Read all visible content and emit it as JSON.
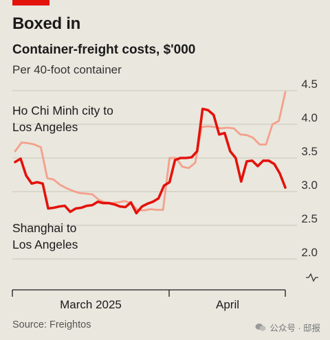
{
  "header": {
    "title": "Boxed in",
    "subtitle": "Container-freight costs, $'000",
    "note": "Per 40-foot container"
  },
  "footer": {
    "source": "Source: Freightos",
    "watermark": "公众号 · 邸报"
  },
  "colors": {
    "background": "#e9e7de",
    "accent": "#e3120b",
    "hcmc_line": "#f4a08c",
    "shanghai_line": "#e3120b",
    "axis": "#1a1a1a"
  },
  "chart_data": {
    "type": "line",
    "title": "Container-freight costs, $'000",
    "subtitle": "Per 40-foot container",
    "ylim": [
      2.0,
      4.5
    ],
    "y_ticks": [
      2.0,
      2.5,
      3.0,
      3.5,
      4.0,
      4.5
    ],
    "y_tick_labels": [
      "2.0",
      "2.5",
      "3.0",
      "3.5",
      "4.0",
      "4.5"
    ],
    "x_labels": [
      "March 2025",
      "April"
    ],
    "grid": "horizontal",
    "axis_break": true,
    "series": [
      {
        "name": "Ho Chi Minh city to Los Angeles",
        "color": "#f4a08c",
        "values": [
          3.6,
          3.73,
          3.72,
          3.7,
          3.66,
          3.2,
          3.18,
          3.1,
          3.05,
          3.01,
          2.98,
          2.97,
          2.96,
          2.88,
          2.84,
          2.83,
          2.84,
          2.86,
          2.83,
          2.73,
          2.72,
          2.74,
          2.73,
          2.73,
          3.5,
          3.5,
          3.37,
          3.35,
          3.43,
          3.96,
          3.97,
          3.96,
          3.94,
          3.95,
          3.94,
          3.85,
          3.84,
          3.8,
          3.7,
          3.7,
          4.0,
          4.05,
          4.48
        ]
      },
      {
        "name": "Shanghai to Los Angeles",
        "color": "#e3120b",
        "values": [
          3.44,
          3.49,
          3.24,
          3.12,
          3.14,
          3.12,
          2.75,
          2.76,
          2.78,
          2.79,
          2.7,
          2.75,
          2.76,
          2.79,
          2.8,
          2.85,
          2.83,
          2.83,
          2.81,
          2.78,
          2.77,
          2.84,
          2.68,
          2.78,
          2.82,
          2.85,
          2.9,
          3.09,
          3.14,
          3.47,
          3.5,
          3.5,
          3.51,
          3.6,
          4.23,
          4.21,
          4.14,
          3.85,
          3.87,
          3.6,
          3.5,
          3.15,
          3.45,
          3.46,
          3.38,
          3.46,
          3.46,
          3.41,
          3.27,
          3.06
        ]
      }
    ],
    "annotations": [
      {
        "series": "Ho Chi Minh city to Los Angeles",
        "lines": [
          "Ho Chi Minh city to",
          "Los Angeles"
        ]
      },
      {
        "series": "Shanghai to Los Angeles",
        "lines": [
          "Shanghai to",
          "Los Angeles"
        ]
      }
    ]
  }
}
